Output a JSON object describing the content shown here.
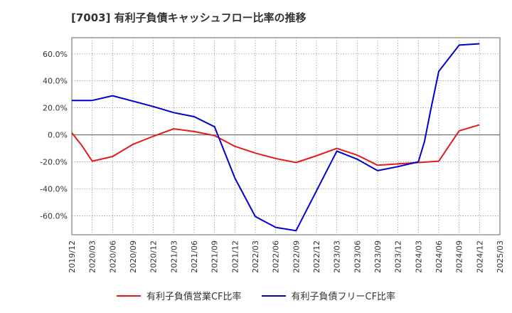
{
  "chart_data": {
    "type": "line",
    "title": "[7003]  有利子負債キャッシュフロー比率の推移",
    "x": [
      "2019/12",
      "2020/03",
      "2020/06",
      "2020/09",
      "2020/12",
      "2021/03",
      "2021/06",
      "2021/09",
      "2021/12",
      "2022/03",
      "2022/06",
      "2022/09",
      "2022/12",
      "2023/03",
      "2023/06",
      "2023/09",
      "2023/12",
      "2024/03",
      "2024/06",
      "2024/09",
      "2024/12",
      "2025/03"
    ],
    "y_ticks": [
      "60.0%",
      "40.0%",
      "20.0%",
      "0.0%",
      "-20.0%",
      "-40.0%",
      "-60.0%"
    ],
    "ylim": [
      -74,
      72
    ],
    "grid": true,
    "legend_position": "bottom",
    "series": [
      {
        "name": "有利子負債営業CF比率",
        "color": "#e41a1c",
        "points": [
          [
            0,
            1.5
          ],
          [
            0.5,
            -8
          ],
          [
            1,
            -19.5
          ],
          [
            2,
            -16
          ],
          [
            3,
            -7
          ],
          [
            4,
            -1
          ],
          [
            5,
            4.5
          ],
          [
            6,
            2.5
          ],
          [
            7,
            -0.5
          ],
          [
            8,
            -8.5
          ],
          [
            9,
            -13.5
          ],
          [
            10,
            -17.5
          ],
          [
            11,
            -20.5
          ],
          [
            12,
            -15.5
          ],
          [
            13,
            -10
          ],
          [
            14,
            -15
          ],
          [
            15,
            -22.5
          ],
          [
            16,
            -21.5
          ],
          [
            17,
            -20.5
          ],
          [
            18,
            -19.5
          ],
          [
            19,
            3
          ],
          [
            20,
            7.5
          ]
        ]
      },
      {
        "name": "有利子負債フリーCF比率",
        "color": "#0000cc",
        "points": [
          [
            0,
            25.5
          ],
          [
            1,
            25.5
          ],
          [
            2,
            29
          ],
          [
            3,
            25
          ],
          [
            4,
            21
          ],
          [
            5,
            16.5
          ],
          [
            6,
            13.5
          ],
          [
            7,
            6
          ],
          [
            8,
            -32
          ],
          [
            9,
            -60.5
          ],
          [
            10,
            -68.5
          ],
          [
            11,
            -71
          ],
          [
            12,
            -41.5
          ],
          [
            13,
            -12
          ],
          [
            14,
            -18
          ],
          [
            15,
            -26.5
          ],
          [
            16,
            -23.5
          ],
          [
            17,
            -20
          ],
          [
            17.3,
            -5
          ],
          [
            17.6,
            18
          ],
          [
            18,
            47
          ],
          [
            19,
            66.5
          ],
          [
            20,
            67.5
          ]
        ]
      }
    ]
  }
}
